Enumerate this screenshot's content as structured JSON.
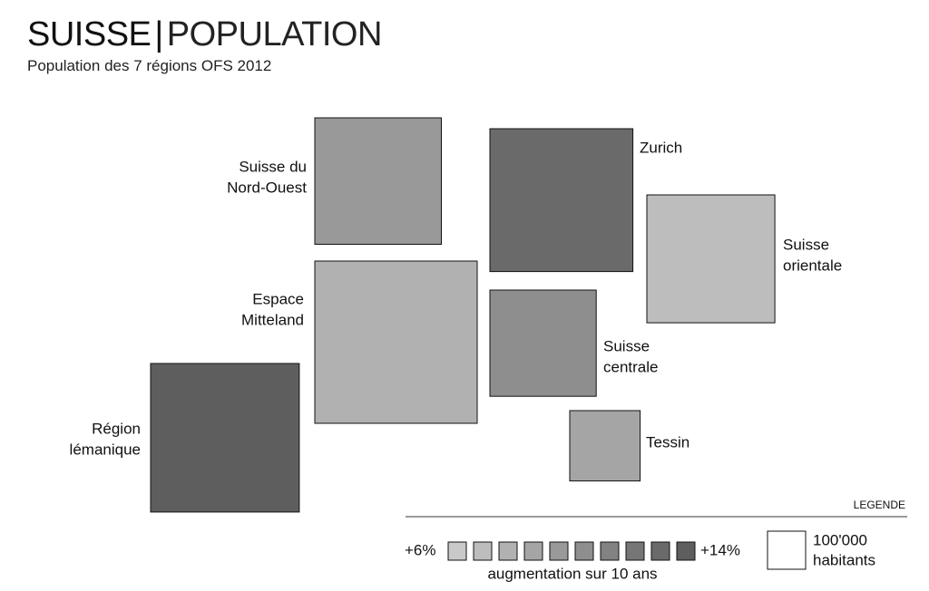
{
  "header": {
    "title_main": "SUISSE",
    "title_sep": "|",
    "title_sub": "POPULATION",
    "subtitle": "Population des 7 régions OFS 2012"
  },
  "chart_data": {
    "type": "proportional-square",
    "unit_population": 100000,
    "regions": [
      {
        "name": "Région lémanique",
        "label_lines": [
          "Région",
          "lémanique"
        ],
        "population": 1523000,
        "growth_level": 10
      },
      {
        "name": "Espace Mittleland",
        "label_lines": [
          "Espace",
          "Mitteland"
        ],
        "population": 1817000,
        "growth_level": 3
      },
      {
        "name": "Suisse du Nord-Ouest",
        "label_lines": [
          "Suisse du",
          "Nord-Ouest"
        ],
        "population": 1103000,
        "growth_level": 5
      },
      {
        "name": "Zurich",
        "label_lines": [
          "Zurich"
        ],
        "population": 1408000,
        "growth_level": 9
      },
      {
        "name": "Suisse orientale",
        "label_lines": [
          "Suisse",
          "orientale"
        ],
        "population": 1129000,
        "growth_level": 2
      },
      {
        "name": "Suisse centrale",
        "label_lines": [
          "Suisse",
          "centrale"
        ],
        "population": 779000,
        "growth_level": 6
      },
      {
        "name": "Tessin",
        "label_lines": [
          "Tessin"
        ],
        "population": 341000,
        "growth_level": 4
      }
    ],
    "legend": {
      "title": "LEGENDE",
      "min_label": "+6%",
      "max_label": "+14%",
      "steps": 10,
      "scale_label": "augmentation sur 10 ans",
      "unit_label_lines": [
        "100'000",
        "habitants"
      ]
    },
    "colors": {
      "ramp_light": "#c9c9c9",
      "ramp_dark": "#5e5e5e",
      "stroke": "#111111"
    }
  }
}
